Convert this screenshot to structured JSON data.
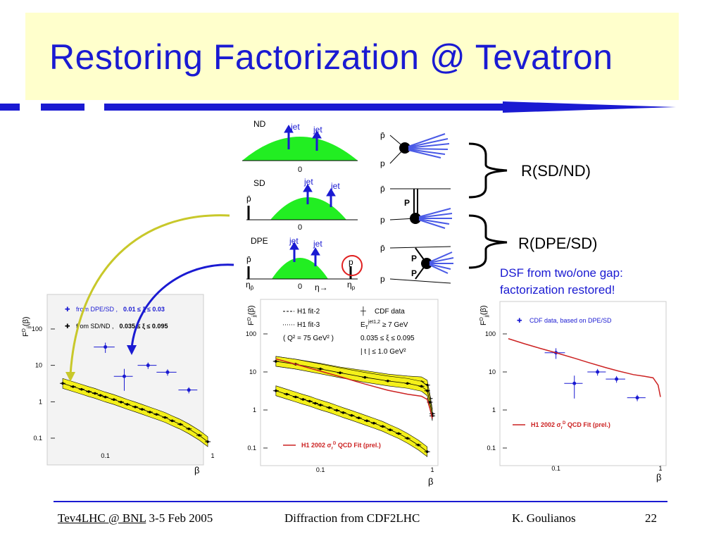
{
  "slide": {
    "title": "Restoring Factorization @ Tevatron",
    "accent_color": "#1a1ad2",
    "title_bg": "#ffffcc"
  },
  "schematic": {
    "rows": [
      {
        "label": "ND",
        "jets": [
          "jet",
          "jet"
        ],
        "zero": "0"
      },
      {
        "label": "SD",
        "jets": [
          "jet",
          "jet"
        ],
        "zero": "0",
        "pbar": "p̄"
      },
      {
        "label": "DPE",
        "jets": [
          "jet",
          "jet"
        ],
        "zero": "0",
        "pbar": "p̄",
        "p": "p"
      }
    ],
    "eta_pbar": "η",
    "eta_pbar_sub": "p̄",
    "eta_axis": "η→",
    "eta_p": "η",
    "eta_p_sub": "p",
    "feynman": [
      {
        "top": "p̄",
        "bottom": "p"
      },
      {
        "top": "p̄",
        "bottom": "p",
        "pomeron": "P"
      },
      {
        "top": "p̄",
        "bottom": "p",
        "pomeron1": "P",
        "pomeron2": "P"
      }
    ],
    "shape_color": "#22ee22"
  },
  "annotations": {
    "r_sd_nd": "R(SD/ND)",
    "r_dpe_sd": "R(DPE/SD)",
    "dsf_line1": "DSF from two/one gap:",
    "dsf_line2": "factorization restored!"
  },
  "plots": {
    "ylabel_main": "F",
    "ylabel_sup": "D",
    "ylabel_sub": "jj",
    "ylabel_arg": "(β)",
    "xlabel": "β",
    "left": {
      "legend": [
        {
          "text": "from DPE/SD ,",
          "range": "0.01 ≤ ξ ≤ 0.03",
          "color": "#1a1ad2"
        },
        {
          "text": "from SD/ND ,",
          "range": "0.035 ≤ ξ ≤ 0.095",
          "color": "#000000"
        }
      ],
      "yticks": [
        "100",
        "10",
        "1",
        "0.1"
      ],
      "xticks": [
        "0.1",
        "1"
      ]
    },
    "middle": {
      "legend_left": [
        "H1 fit-2",
        "H1 fit-3",
        "( Q² = 75 GeV² )"
      ],
      "legend_right": [
        "CDF data",
        "E_T^{jet1,2} ≥ 7 GeV",
        "0.035 ≤ ξ ≤ 0.095",
        "| t | ≤ 1.0 GeV²"
      ],
      "et_main": "E",
      "et_sub": "T",
      "et_sup": "jet1,2",
      "et_rest": " ≥ 7 GeV",
      "xi_range": "0.035 ≤ ξ ≤ 0.095",
      "t_range": "| t | ≤ 1.0 GeV²",
      "fit_label": "H1 2002 σ",
      "fit_sub": "r",
      "fit_sup": "D",
      "fit_rest": " QCD Fit (prel.)",
      "yticks": [
        "100",
        "10",
        "1",
        "0.1"
      ],
      "xticks": [
        "0.1",
        "1"
      ]
    },
    "right": {
      "legend": "CDF data, based on DPE/SD",
      "fit_label": "H1 2002 σ",
      "fit_sub": "r",
      "fit_sup": "D",
      "fit_rest": " QCD Fit (prel.)",
      "yticks": [
        "100",
        "10",
        "1",
        "0.1"
      ],
      "xticks": [
        "0.1",
        "1"
      ]
    }
  },
  "chart_data": [
    {
      "type": "scatter",
      "xscale": "log",
      "yscale": "log",
      "xlim": [
        0.03,
        1
      ],
      "ylim": [
        0.06,
        300
      ],
      "xlabel": "β",
      "ylabel": "F_jj^D(β)",
      "series": [
        {
          "name": "from DPE/SD , 0.01 ≤ ξ ≤ 0.03",
          "color": "#1a1ad2",
          "x": [
            0.1,
            0.15,
            0.25,
            0.38,
            0.6
          ],
          "y": [
            32,
            5,
            10,
            6.5,
            2.1
          ],
          "xerr": [
            0.022,
            0.03,
            0.05,
            0.08,
            0.12
          ],
          "yerr": [
            10,
            3,
            2,
            1.3,
            0.4
          ]
        },
        {
          "name": "from SD/ND , 0.035 ≤ ξ ≤ 0.095",
          "color": "#000000",
          "x": [
            0.04,
            0.05,
            0.06,
            0.07,
            0.08,
            0.09,
            0.1,
            0.12,
            0.14,
            0.16,
            0.19,
            0.22,
            0.26,
            0.3,
            0.36,
            0.42,
            0.5,
            0.6,
            0.75,
            0.9
          ],
          "y": [
            3.2,
            2.6,
            2.2,
            1.9,
            1.7,
            1.5,
            1.35,
            1.15,
            0.98,
            0.85,
            0.72,
            0.62,
            0.52,
            0.45,
            0.37,
            0.3,
            0.24,
            0.18,
            0.12,
            0.08
          ]
        }
      ]
    },
    {
      "type": "line",
      "xscale": "log",
      "yscale": "log",
      "xlim": [
        0.03,
        1
      ],
      "ylim": [
        0.06,
        300
      ],
      "xlabel": "β",
      "ylabel": "F_jj^D(β)",
      "series": [
        {
          "name": "CDF data",
          "color": "#000000",
          "x": [
            0.04,
            0.05,
            0.06,
            0.07,
            0.08,
            0.09,
            0.1,
            0.12,
            0.14,
            0.16,
            0.19,
            0.22,
            0.26,
            0.3,
            0.36,
            0.42,
            0.5,
            0.6,
            0.75,
            0.9
          ],
          "y": [
            3.2,
            2.6,
            2.2,
            1.9,
            1.7,
            1.5,
            1.35,
            1.15,
            0.98,
            0.85,
            0.72,
            0.62,
            0.52,
            0.45,
            0.37,
            0.3,
            0.24,
            0.18,
            0.12,
            0.08
          ]
        },
        {
          "name": "H1 fit-2",
          "color": "#000000",
          "style": "dashed",
          "x": [
            0.04,
            0.06,
            0.1,
            0.15,
            0.25,
            0.4,
            0.6,
            0.8,
            0.9,
            0.95,
            1.0
          ],
          "y": [
            19,
            16,
            12.5,
            10,
            8,
            6.5,
            5.8,
            5.5,
            4.5,
            2.0,
            0.8
          ]
        },
        {
          "name": "H1 fit-3",
          "color": "#000000",
          "style": "dotted",
          "x": [
            0.04,
            0.06,
            0.1,
            0.15,
            0.25,
            0.4,
            0.6,
            0.8,
            0.9,
            0.95,
            1.0
          ],
          "y": [
            19,
            16,
            12,
            9.5,
            7.2,
            5.8,
            5.0,
            4.2,
            3.2,
            1.6,
            0.7
          ]
        },
        {
          "name": "H1 2002 σr D QCD Fit (prel.)",
          "color": "#cc2222",
          "x": [
            0.04,
            0.06,
            0.1,
            0.15,
            0.25,
            0.4,
            0.6,
            0.8,
            0.9,
            0.95,
            1.0
          ],
          "y": [
            22,
            16,
            10.5,
            7.5,
            4.8,
            3.3,
            2.6,
            2.3,
            1.9,
            1.1,
            0.6
          ]
        }
      ]
    },
    {
      "type": "scatter",
      "xscale": "log",
      "yscale": "log",
      "xlim": [
        0.03,
        1
      ],
      "ylim": [
        0.06,
        300
      ],
      "xlabel": "β",
      "ylabel": "F_jj^D(β)",
      "series": [
        {
          "name": "CDF data, based on DPE/SD",
          "color": "#1a1ad2",
          "x": [
            0.1,
            0.15,
            0.25,
            0.38,
            0.6
          ],
          "y": [
            32,
            5,
            10,
            6.5,
            2.1
          ],
          "xerr": [
            0.022,
            0.03,
            0.05,
            0.08,
            0.12
          ],
          "yerr": [
            10,
            3,
            2,
            1.3,
            0.4
          ]
        },
        {
          "name": "H1 2002 σr D QCD Fit (prel.)",
          "color": "#cc2222",
          "x": [
            0.035,
            0.05,
            0.07,
            0.1,
            0.15,
            0.2,
            0.3,
            0.4,
            0.55,
            0.7,
            0.85,
            0.95,
            1.0
          ],
          "y": [
            75,
            55,
            42,
            32,
            23,
            18,
            13,
            10.5,
            8.5,
            7.7,
            7.0,
            4.5,
            2.2
          ]
        }
      ]
    }
  ],
  "footer": {
    "link": "Tev4LHC @ BNL",
    "date": " 3-5 Feb 2005",
    "center": "Diffraction from CDF2LHC",
    "author": "K. Goulianos",
    "page": "22"
  }
}
